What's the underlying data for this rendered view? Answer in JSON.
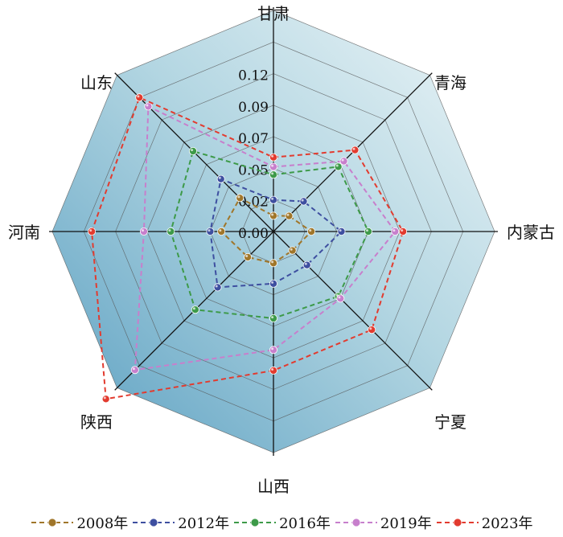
{
  "chart_data": {
    "type": "radar",
    "axes": [
      "甘肃",
      "青海",
      "内蒙古",
      "宁夏",
      "山西",
      "陕西",
      "河南",
      "山东"
    ],
    "ticks": [
      "0.00",
      "0.02",
      "0.05",
      "0.07",
      "0.09",
      "0.12"
    ],
    "rmax": 0.14,
    "series": [
      {
        "name": "2008年",
        "color": "#a0762a",
        "values": [
          0.01,
          0.014,
          0.024,
          0.017,
          0.02,
          0.023,
          0.033,
          0.03
        ]
      },
      {
        "name": "2012年",
        "color": "#3e4fa0",
        "values": [
          0.02,
          0.027,
          0.043,
          0.03,
          0.033,
          0.05,
          0.04,
          0.047
        ]
      },
      {
        "name": "2016年",
        "color": "#3d9a49",
        "values": [
          0.036,
          0.058,
          0.06,
          0.058,
          0.055,
          0.07,
          0.065,
          0.072
        ]
      },
      {
        "name": "2019年",
        "color": "#c77fcc",
        "values": [
          0.041,
          0.063,
          0.077,
          0.06,
          0.075,
          0.124,
          0.082,
          0.112
        ]
      },
      {
        "name": "2023年",
        "color": "#e23b2f",
        "values": [
          0.047,
          0.073,
          0.082,
          0.088,
          0.088,
          0.15,
          0.115,
          0.12
        ]
      }
    ]
  }
}
